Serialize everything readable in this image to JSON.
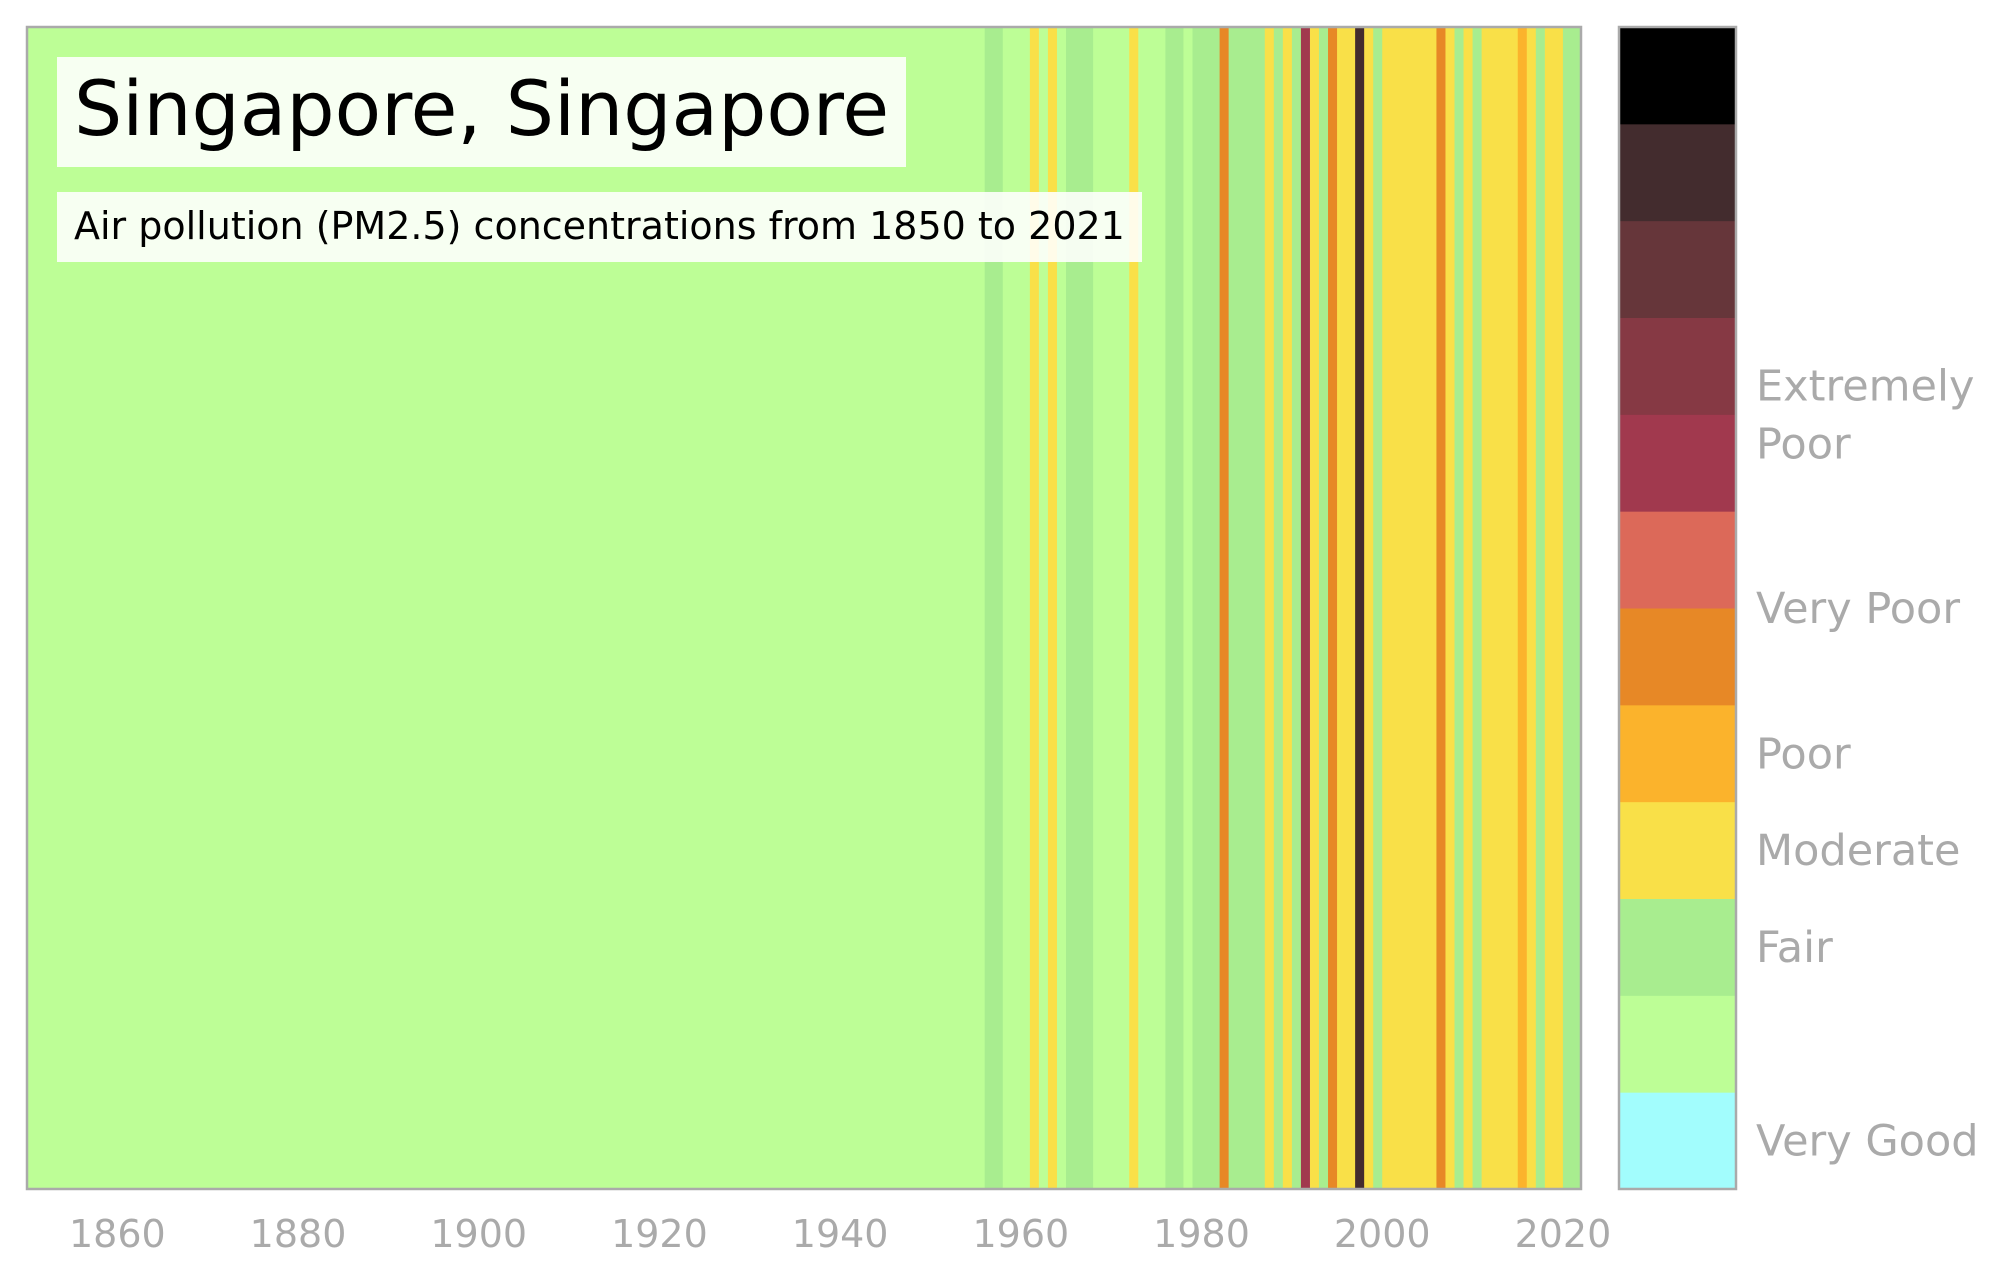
{
  "chart_data": {
    "type": "heatmap",
    "title": "Singapore, Singapore",
    "subtitle": "Air pollution (PM2.5) concentrations from 1850 to 2021",
    "x_range": [
      1850,
      2021
    ],
    "x_ticks": [
      "1860",
      "1880",
      "1900",
      "1920",
      "1940",
      "1960",
      "1980",
      "2000",
      "2020"
    ],
    "scale": [
      {
        "color": "#a2fdfd",
        "label": "Very Good"
      },
      {
        "color": "#bdfe96",
        "label": ""
      },
      {
        "color": "#a8ed8f",
        "label": "Fair"
      },
      {
        "color": "#f9e048",
        "label": "Moderate"
      },
      {
        "color": "#fbb32c",
        "label": "Poor"
      },
      {
        "color": "#e78826",
        "label": ""
      },
      {
        "color": "#dc6959",
        "label": "Very Poor"
      },
      {
        "color": "#a1394e",
        "label": ""
      },
      {
        "color": "#863944",
        "label": "Extremely Poor"
      },
      {
        "color": "#66363a",
        "label": ""
      },
      {
        "color": "#432c2e",
        "label": ""
      },
      {
        "color": "#000000",
        "label": ""
      }
    ],
    "scale_label_rows": [
      {
        "label": "Extremely Poor",
        "lines": [
          "Extremely",
          "Poor"
        ],
        "level": 8
      },
      {
        "label": "Very Poor",
        "lines": [
          "Very Poor"
        ],
        "level": 6
      },
      {
        "label": "Poor",
        "lines": [
          "Poor"
        ],
        "level": 4.5
      },
      {
        "label": "Moderate",
        "lines": [
          "Moderate"
        ],
        "level": 3.5
      },
      {
        "label": "Fair",
        "lines": [
          "Fair"
        ],
        "level": 2.5
      },
      {
        "label": "Very Good",
        "lines": [
          "Very Good"
        ],
        "level": 0.5
      }
    ],
    "segments": [
      {
        "start": 1850,
        "end": 1956,
        "level": 1
      },
      {
        "start": 1956,
        "end": 1958,
        "level": 2
      },
      {
        "start": 1958,
        "end": 1961,
        "level": 1
      },
      {
        "start": 1961,
        "end": 1962,
        "level": 3
      },
      {
        "start": 1962,
        "end": 1963,
        "level": 1
      },
      {
        "start": 1963,
        "end": 1964,
        "level": 3
      },
      {
        "start": 1964,
        "end": 1965,
        "level": 1
      },
      {
        "start": 1965,
        "end": 1968,
        "level": 2
      },
      {
        "start": 1968,
        "end": 1972,
        "level": 1
      },
      {
        "start": 1972,
        "end": 1973,
        "level": 3
      },
      {
        "start": 1973,
        "end": 1976,
        "level": 1
      },
      {
        "start": 1976,
        "end": 1978,
        "level": 2
      },
      {
        "start": 1978,
        "end": 1979,
        "level": 1
      },
      {
        "start": 1979,
        "end": 1982,
        "level": 2
      },
      {
        "start": 1982,
        "end": 1983,
        "level": 5
      },
      {
        "start": 1983,
        "end": 1987,
        "level": 2
      },
      {
        "start": 1987,
        "end": 1988,
        "level": 3
      },
      {
        "start": 1988,
        "end": 1989,
        "level": 2
      },
      {
        "start": 1989,
        "end": 1990,
        "level": 3
      },
      {
        "start": 1990,
        "end": 1991,
        "level": 2
      },
      {
        "start": 1991,
        "end": 1992,
        "level": 7
      },
      {
        "start": 1992,
        "end": 1993,
        "level": 3
      },
      {
        "start": 1993,
        "end": 1994,
        "level": 2
      },
      {
        "start": 1994,
        "end": 1995,
        "level": 5
      },
      {
        "start": 1995,
        "end": 1997,
        "level": 3
      },
      {
        "start": 1997,
        "end": 1998,
        "level": 10
      },
      {
        "start": 1998,
        "end": 1999,
        "level": 3
      },
      {
        "start": 1999,
        "end": 2000,
        "level": 2
      },
      {
        "start": 2000,
        "end": 2006,
        "level": 3
      },
      {
        "start": 2006,
        "end": 2007,
        "level": 5
      },
      {
        "start": 2007,
        "end": 2008,
        "level": 3
      },
      {
        "start": 2008,
        "end": 2009,
        "level": 2
      },
      {
        "start": 2009,
        "end": 2010,
        "level": 3
      },
      {
        "start": 2010,
        "end": 2011,
        "level": 2
      },
      {
        "start": 2011,
        "end": 2015,
        "level": 3
      },
      {
        "start": 2015,
        "end": 2016,
        "level": 4
      },
      {
        "start": 2016,
        "end": 2017,
        "level": 3
      },
      {
        "start": 2017,
        "end": 2018,
        "level": 2
      },
      {
        "start": 2018,
        "end": 2020,
        "level": 3
      },
      {
        "start": 2020,
        "end": 2022,
        "level": 2
      }
    ],
    "axis_color": "#aaaaaa",
    "grid": false,
    "legend_placement": "right"
  }
}
